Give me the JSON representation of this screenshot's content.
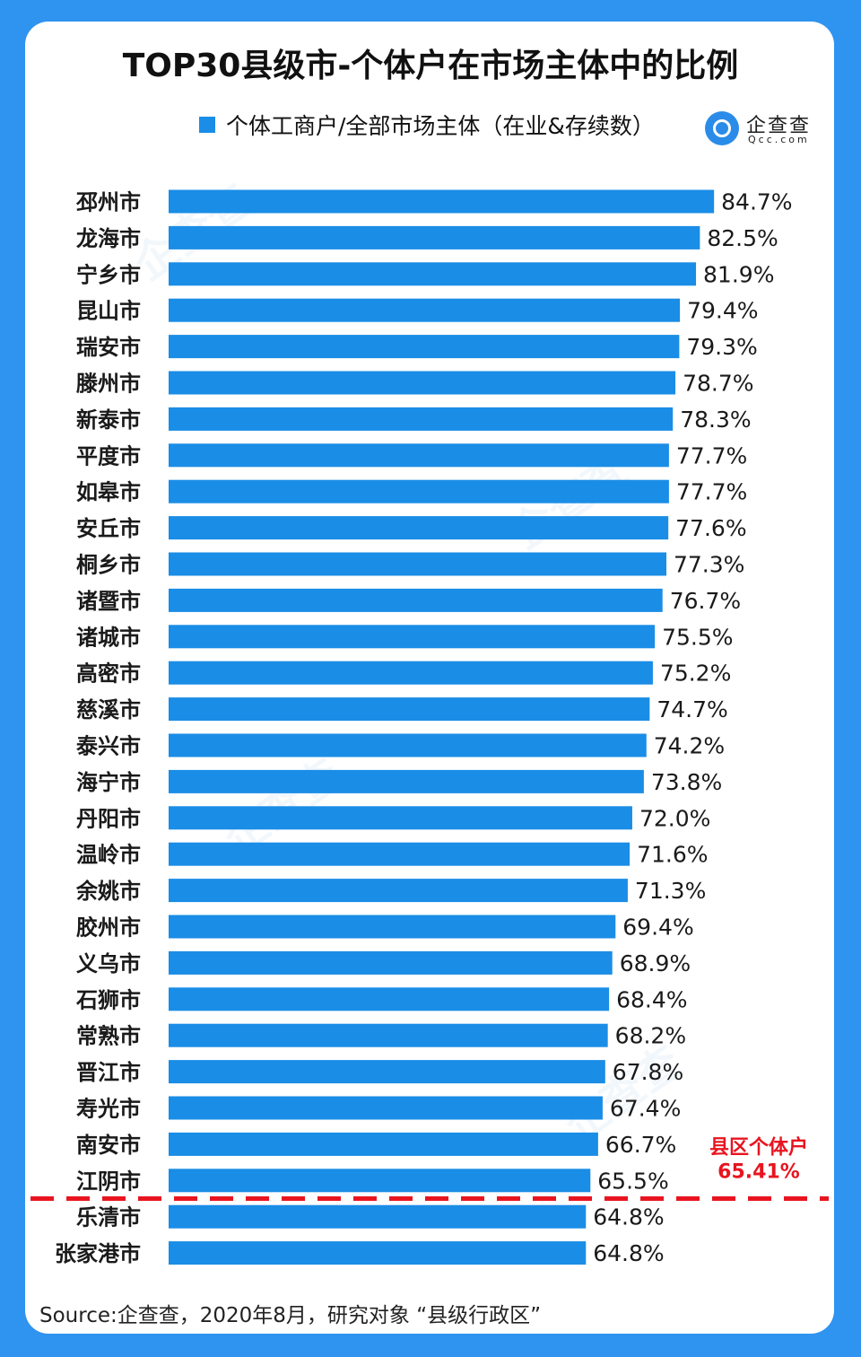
{
  "title": "TOP30县级市-个体户在市场主体中的比例",
  "legend": {
    "label": "个体工商户/全部市场主体（在业&存续数）",
    "color": "#1a8de6"
  },
  "logo": {
    "name": "企查查",
    "domain": "Qcc.com"
  },
  "source": "Source:企查查，2020年8月，研究对象  “县级行政区”",
  "colors": {
    "bar": "#1a8de6",
    "reference": "#e8141f",
    "background": "#2f93f0"
  },
  "chart_data": {
    "type": "bar",
    "orientation": "horizontal",
    "title": "TOP30县级市-个体户在市场主体中的比例",
    "xlabel": "",
    "ylabel": "",
    "xlim": [
      0,
      100
    ],
    "unit": "%",
    "legend_position": "top",
    "grid": false,
    "categories": [
      "邳州市",
      "龙海市",
      "宁乡市",
      "昆山市",
      "瑞安市",
      "滕州市",
      "新泰市",
      "平度市",
      "如皋市",
      "安丘市",
      "桐乡市",
      "诸暨市",
      "诸城市",
      "高密市",
      "慈溪市",
      "泰兴市",
      "海宁市",
      "丹阳市",
      "温岭市",
      "余姚市",
      "胶州市",
      "义乌市",
      "石狮市",
      "常熟市",
      "晋江市",
      "寿光市",
      "南安市",
      "江阴市",
      "乐清市",
      "张家港市"
    ],
    "series": [
      {
        "name": "个体工商户/全部市场主体（在业&存续数）",
        "values": [
          84.7,
          82.5,
          81.9,
          79.4,
          79.3,
          78.7,
          78.3,
          77.7,
          77.7,
          77.6,
          77.3,
          76.7,
          75.5,
          75.2,
          74.7,
          74.2,
          73.8,
          72.0,
          71.6,
          71.3,
          69.4,
          68.9,
          68.4,
          68.2,
          67.8,
          67.4,
          66.7,
          65.5,
          64.8,
          64.8
        ],
        "labels": [
          "84.7%",
          "82.5%",
          "81.9%",
          "79.4%",
          "79.3%",
          "78.7%",
          "78.3%",
          "77.7%",
          "77.7%",
          "77.6%",
          "77.3%",
          "76.7%",
          "75.5%",
          "75.2%",
          "74.7%",
          "74.2%",
          "73.8%",
          "72.0%",
          "71.6%",
          "71.3%",
          "69.4%",
          "68.9%",
          "68.4%",
          "68.2%",
          "67.8%",
          "67.4%",
          "66.7%",
          "65.5%",
          "64.8%",
          "64.8%"
        ]
      }
    ],
    "reference_line": {
      "value": 65.41,
      "label": "县区个体户",
      "value_label": "65.41%",
      "after_index": 27
    }
  }
}
